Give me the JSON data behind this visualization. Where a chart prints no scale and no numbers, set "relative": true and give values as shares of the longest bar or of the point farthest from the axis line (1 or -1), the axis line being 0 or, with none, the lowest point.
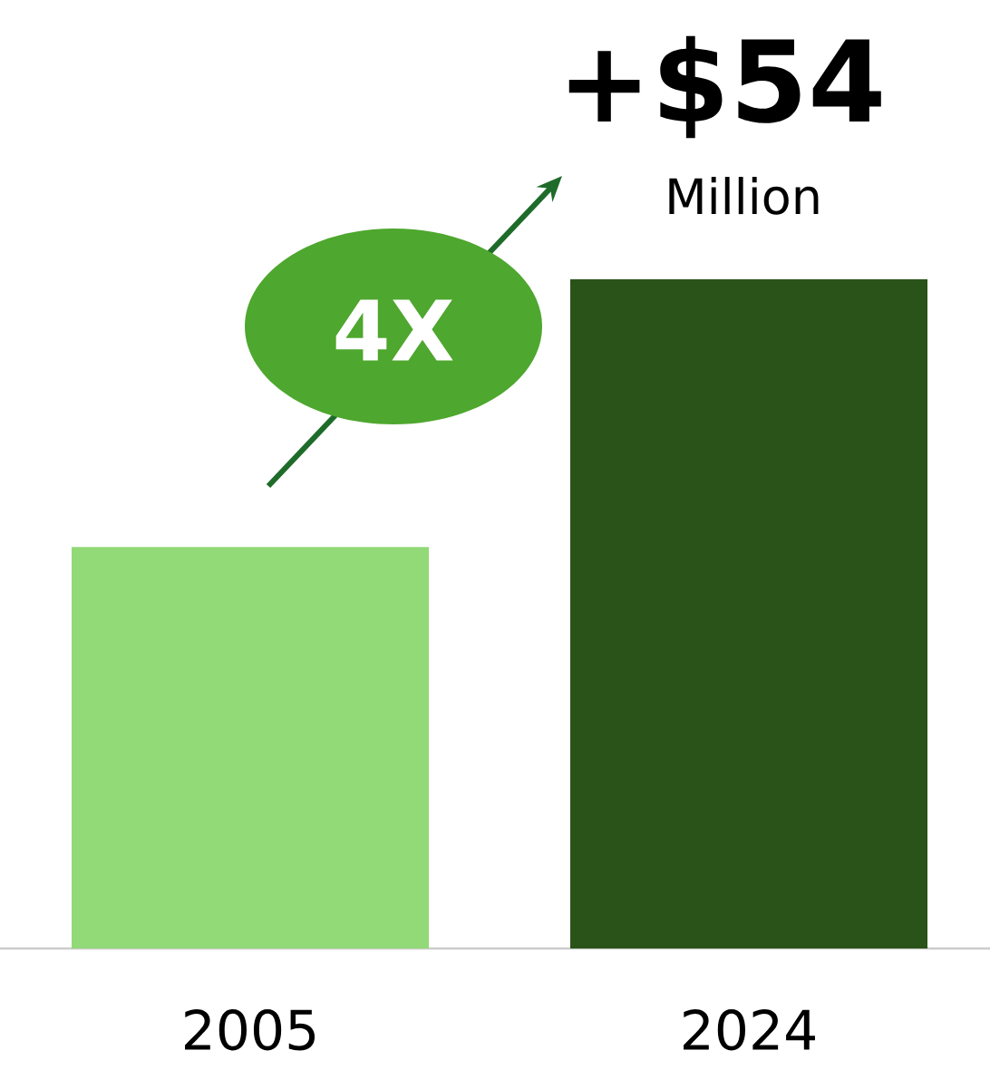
{
  "chart_data": {
    "type": "bar",
    "categories": [
      "2005",
      "2024"
    ],
    "values": [
      0.6,
      1
    ],
    "colors": [
      "#92d977",
      "#2a531a"
    ],
    "relative": true,
    "annotations": [
      "+$54",
      "Million",
      "4X"
    ]
  }
}
